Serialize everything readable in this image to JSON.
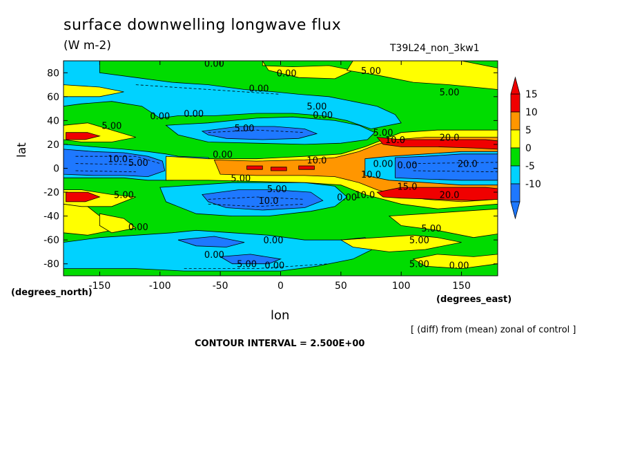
{
  "chart_data": {
    "type": "heatmap",
    "title": "surface downwelling longwave flux",
    "units": "(W m-2)",
    "run_id": "T39L24_non_3kw1",
    "xlabel": "lon",
    "ylabel": "lat",
    "x_units": "(degrees_east)",
    "y_units": "(degrees_north)",
    "xlim": [
      -180,
      180
    ],
    "ylim": [
      -90,
      90
    ],
    "x_ticks": [
      -150,
      -100,
      -50,
      0,
      50,
      100,
      150
    ],
    "y_ticks": [
      80,
      60,
      40,
      20,
      0,
      -20,
      -40,
      -60,
      -80
    ],
    "colorbar": {
      "levels": [
        -10,
        -5,
        0,
        5,
        10,
        15
      ],
      "colors": [
        "#1e78ff",
        "#00d2ff",
        "#00dc00",
        "#ffff00",
        "#ff9600",
        "#f00000"
      ],
      "low_color": "#1e78ff",
      "high_color": "#f00000"
    },
    "note": "[ (diff) from (mean) zonal of control ]",
    "contour_interval": "CONTOUR INTERVAL = 2.500E+00",
    "contour_labels": [
      {
        "text": "0.00",
        "lon": -55,
        "lat": 88
      },
      {
        "text": "0.00",
        "lon": 5,
        "lat": 80
      },
      {
        "text": "5.00",
        "lon": 75,
        "lat": 82
      },
      {
        "text": "0.00",
        "lon": -18,
        "lat": 67
      },
      {
        "text": "5.00",
        "lon": 140,
        "lat": 64
      },
      {
        "text": "5.00",
        "lon": 30,
        "lat": 52
      },
      {
        "text": "0.00",
        "lon": 35,
        "lat": 45
      },
      {
        "text": "0.00",
        "lon": -100,
        "lat": 44
      },
      {
        "text": "0.00",
        "lon": -72,
        "lat": 46
      },
      {
        "text": "5.00",
        "lon": -140,
        "lat": 36
      },
      {
        "text": "5.00",
        "lon": -30,
        "lat": 34
      },
      {
        "text": "5.00",
        "lon": 85,
        "lat": 30
      },
      {
        "text": "10.0",
        "lon": 95,
        "lat": 24
      },
      {
        "text": "20.0",
        "lon": 140,
        "lat": 26
      },
      {
        "text": "0.00",
        "lon": -48,
        "lat": 12
      },
      {
        "text": "10.0",
        "lon": -135,
        "lat": 8
      },
      {
        "text": "5.00",
        "lon": -118,
        "lat": 5
      },
      {
        "text": "10.0",
        "lon": 30,
        "lat": 7
      },
      {
        "text": "0.00",
        "lon": 85,
        "lat": 4
      },
      {
        "text": "0.00",
        "lon": 105,
        "lat": 3
      },
      {
        "text": "10.0",
        "lon": 75,
        "lat": -5
      },
      {
        "text": "20.0",
        "lon": 155,
        "lat": 4
      },
      {
        "text": "5.00",
        "lon": -33,
        "lat": -8
      },
      {
        "text": "5.00",
        "lon": -3,
        "lat": -17
      },
      {
        "text": "10.0",
        "lon": -10,
        "lat": -27
      },
      {
        "text": "0.00",
        "lon": 55,
        "lat": -24
      },
      {
        "text": "10.0",
        "lon": 70,
        "lat": -22
      },
      {
        "text": "15.0",
        "lon": 105,
        "lat": -15
      },
      {
        "text": "20.0",
        "lon": 140,
        "lat": -22
      },
      {
        "text": "5.00",
        "lon": -130,
        "lat": -22
      },
      {
        "text": "0.00",
        "lon": -118,
        "lat": -49
      },
      {
        "text": "5.00",
        "lon": 125,
        "lat": -50
      },
      {
        "text": "0.00",
        "lon": -6,
        "lat": -60
      },
      {
        "text": "5.00",
        "lon": 115,
        "lat": -60
      },
      {
        "text": "0.00",
        "lon": -55,
        "lat": -72
      },
      {
        "text": "5.00",
        "lon": -28,
        "lat": -80
      },
      {
        "text": "0.00",
        "lon": -5,
        "lat": -81
      },
      {
        "text": "5.00",
        "lon": 115,
        "lat": -80
      },
      {
        "text": "0.00",
        "lon": 148,
        "lat": -81
      }
    ]
  }
}
